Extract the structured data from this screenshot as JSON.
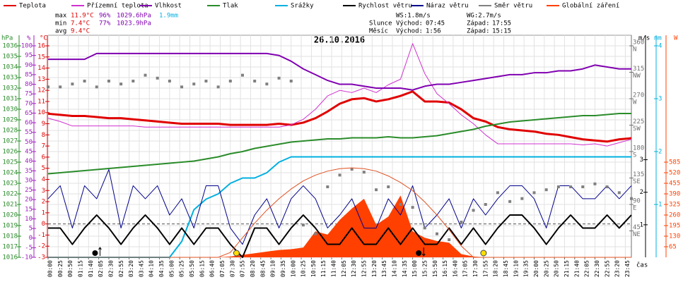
{
  "chart_data": {
    "type": "line",
    "title": "26.10.2016",
    "xlabel": "čas",
    "x": [
      0,
      30,
      60,
      90,
      120,
      150,
      180,
      210,
      240,
      270,
      300,
      330,
      360,
      390,
      420,
      450,
      480,
      510,
      540,
      570,
      600,
      630,
      660,
      690,
      720,
      750,
      780,
      810,
      840,
      870,
      900,
      930,
      960,
      990,
      1020,
      1050,
      1080,
      1110,
      1140,
      1170,
      1200,
      1230,
      1260,
      1290,
      1320,
      1350,
      1380,
      1410,
      1440
    ],
    "xlim": [
      0,
      1440
    ],
    "xticks": [
      {
        "value": 0,
        "label": "00:00"
      },
      {
        "value": 25,
        "label": "00:25"
      },
      {
        "value": 50,
        "label": "00:50"
      },
      {
        "value": 75,
        "label": "01:15"
      },
      {
        "value": 100,
        "label": "01:40"
      },
      {
        "value": 125,
        "label": "02:05"
      },
      {
        "value": 150,
        "label": "02:30"
      },
      {
        "value": 175,
        "label": "02:55"
      },
      {
        "value": 200,
        "label": "03:20"
      },
      {
        "value": 225,
        "label": "03:45"
      },
      {
        "value": 250,
        "label": "04:10"
      },
      {
        "value": 275,
        "label": "04:35"
      },
      {
        "value": 300,
        "label": "05:00"
      },
      {
        "value": 325,
        "label": "05:25"
      },
      {
        "value": 350,
        "label": "05:50"
      },
      {
        "value": 375,
        "label": "06:15"
      },
      {
        "value": 400,
        "label": "06:40"
      },
      {
        "value": 425,
        "label": "07:05"
      },
      {
        "value": 450,
        "label": "07:30"
      },
      {
        "value": 475,
        "label": "07:55"
      },
      {
        "value": 500,
        "label": "08:20"
      },
      {
        "value": 525,
        "label": "08:45"
      },
      {
        "value": 550,
        "label": "09:10"
      },
      {
        "value": 575,
        "label": "09:35"
      },
      {
        "value": 600,
        "label": "10:00"
      },
      {
        "value": 625,
        "label": "10:25"
      },
      {
        "value": 650,
        "label": "10:50"
      },
      {
        "value": 675,
        "label": "11:15"
      },
      {
        "value": 700,
        "label": "11:40"
      },
      {
        "value": 725,
        "label": "12:05"
      },
      {
        "value": 750,
        "label": "12:30"
      },
      {
        "value": 775,
        "label": "12:55"
      },
      {
        "value": 800,
        "label": "13:20"
      },
      {
        "value": 825,
        "label": "13:45"
      },
      {
        "value": 850,
        "label": "14:10"
      },
      {
        "value": 875,
        "label": "14:35"
      },
      {
        "value": 900,
        "label": "15:00"
      },
      {
        "value": 925,
        "label": "15:25"
      },
      {
        "value": 950,
        "label": "15:50"
      },
      {
        "value": 975,
        "label": "16:15"
      },
      {
        "value": 1000,
        "label": "16:40"
      },
      {
        "value": 1025,
        "label": "17:05"
      },
      {
        "value": 1050,
        "label": "17:30"
      },
      {
        "value": 1075,
        "label": "17:55"
      },
      {
        "value": 1100,
        "label": "18:20"
      },
      {
        "value": 1125,
        "label": "18:45"
      },
      {
        "value": 1150,
        "label": "19:10"
      },
      {
        "value": 1175,
        "label": "19:35"
      },
      {
        "value": 1200,
        "label": "20:00"
      },
      {
        "value": 1225,
        "label": "20:25"
      },
      {
        "value": 1250,
        "label": "20:50"
      },
      {
        "value": 1275,
        "label": "21:15"
      },
      {
        "value": 1300,
        "label": "21:40"
      },
      {
        "value": 1325,
        "label": "22:05"
      },
      {
        "value": 1350,
        "label": "22:30"
      },
      {
        "value": 1375,
        "label": "22:55"
      },
      {
        "value": 1400,
        "label": "23:20"
      },
      {
        "value": 1425,
        "label": "23:45"
      }
    ],
    "grid": true,
    "axes": [
      {
        "id": "y",
        "label": "hPa",
        "color": "#2a8c2a",
        "lim": [
          1016,
          1036
        ],
        "ticks": [
          1016,
          1017,
          1018,
          1019,
          1020,
          1021,
          1022,
          1023,
          1024,
          1025,
          1026,
          1027,
          1028,
          1029,
          1030,
          1031,
          1032,
          1033,
          1034,
          1035,
          1036
        ]
      },
      {
        "id": "y2",
        "label": "%",
        "color": "#a020c0",
        "lim": [
          -10,
          100
        ],
        "ticks": [
          -10,
          -5,
          0,
          5,
          10,
          15,
          20,
          25,
          30,
          35,
          40,
          45,
          50,
          55,
          60,
          65,
          70,
          75,
          80,
          85,
          90,
          95,
          100
        ]
      },
      {
        "id": "y3",
        "label": "°C",
        "color": "#e00000",
        "lim": [
          -3,
          16
        ],
        "ticks": [
          -3,
          -2,
          -1,
          0,
          1,
          2,
          3,
          4,
          5,
          6,
          7,
          8,
          9,
          10,
          11,
          12,
          13,
          14,
          15,
          16
        ]
      },
      {
        "id": "y4",
        "color": "#707070",
        "lim": [
          0,
          360
        ],
        "ticks": [
          {
            "value": 45,
            "label": "NE"
          },
          {
            "value": 90,
            "label": "E"
          },
          {
            "value": 135,
            "label": "SE"
          },
          {
            "value": 180,
            "label": "S"
          },
          {
            "value": 225,
            "label": "SW"
          },
          {
            "value": 270,
            "label": "W"
          },
          {
            "value": 315,
            "label": "NW"
          },
          {
            "value": 360,
            "label": "N"
          }
        ]
      },
      {
        "id": "y5",
        "label": "m/s",
        "color": "#000000",
        "lim": [
          0,
          6.5
        ],
        "ticks": [
          1,
          2,
          3
        ]
      },
      {
        "id": "y6",
        "label": "mm",
        "color": "#00b0e0",
        "lim": [
          0,
          4
        ],
        "ticks": [
          1,
          2,
          3,
          4
        ]
      },
      {
        "id": "y7",
        "label": "W",
        "color": "#ff4000",
        "lim": [
          0,
          1300
        ],
        "ticks": [
          65,
          130,
          195,
          260,
          325,
          390,
          455,
          520,
          585
        ]
      }
    ],
    "series": [
      {
        "name": "Teplota",
        "color": "#e00000",
        "axis": "y3",
        "kind": "line",
        "width": 3,
        "values": [
          9.9,
          9.8,
          9.7,
          9.7,
          9.6,
          9.5,
          9.5,
          9.4,
          9.3,
          9.2,
          9.1,
          9.0,
          9.0,
          9.0,
          9.0,
          8.9,
          8.9,
          8.9,
          8.9,
          9.0,
          8.9,
          9.1,
          9.5,
          10.1,
          10.8,
          11.2,
          11.3,
          11.0,
          11.2,
          11.5,
          11.9,
          11.0,
          11.0,
          10.9,
          10.3,
          9.5,
          9.2,
          8.7,
          8.5,
          8.4,
          8.3,
          8.1,
          8.0,
          7.8,
          7.6,
          7.5,
          7.4,
          7.6,
          7.7
        ]
      },
      {
        "name": "Přízemní teplota",
        "color": "#d030d0",
        "axis": "y3",
        "kind": "line",
        "width": 1,
        "values": [
          9.5,
          9.2,
          8.8,
          8.8,
          8.8,
          8.8,
          8.8,
          8.8,
          8.7,
          8.7,
          8.7,
          8.7,
          8.7,
          8.7,
          8.7,
          8.7,
          8.7,
          8.7,
          8.7,
          8.7,
          8.9,
          9.4,
          10.3,
          11.5,
          12.0,
          11.8,
          12.2,
          11.8,
          12.5,
          13.0,
          16.2,
          13.5,
          11.7,
          10.8,
          9.8,
          9.0,
          8.0,
          7.2,
          7.2,
          7.2,
          7.2,
          7.2,
          7.2,
          7.2,
          7.1,
          7.2,
          7.0,
          7.3,
          7.6
        ]
      },
      {
        "name": "Vlhkost",
        "color": "#8000b0",
        "axis": "y2",
        "kind": "line",
        "width": 2,
        "values": [
          93,
          93,
          93,
          93,
          96,
          96,
          96,
          96,
          96,
          96,
          96,
          96,
          96,
          96,
          96,
          96,
          96,
          96,
          96,
          95,
          92,
          88,
          85,
          82,
          80,
          80,
          79,
          78,
          78,
          78,
          77,
          79,
          80,
          80,
          81,
          82,
          83,
          84,
          85,
          85,
          86,
          86,
          87,
          87,
          88,
          90,
          89,
          88,
          88
        ]
      },
      {
        "name": "Tlak",
        "color": "#2a8c2a",
        "axis": "y",
        "kind": "line",
        "width": 2,
        "values": [
          1023.9,
          1024.0,
          1024.1,
          1024.2,
          1024.3,
          1024.4,
          1024.5,
          1024.6,
          1024.7,
          1024.8,
          1024.9,
          1025.0,
          1025.1,
          1025.3,
          1025.5,
          1025.8,
          1026.0,
          1026.3,
          1026.5,
          1026.7,
          1026.9,
          1027.0,
          1027.1,
          1027.2,
          1027.2,
          1027.3,
          1027.3,
          1027.3,
          1027.4,
          1027.3,
          1027.3,
          1027.4,
          1027.5,
          1027.7,
          1027.9,
          1028.1,
          1028.4,
          1028.6,
          1028.8,
          1028.9,
          1029.0,
          1029.1,
          1029.2,
          1029.3,
          1029.4,
          1029.4,
          1029.5,
          1029.6,
          1029.6
        ]
      },
      {
        "name": "Srážky",
        "color": "#00b0e0",
        "axis": "y6",
        "kind": "line",
        "width": 2,
        "values": [
          0,
          0,
          0,
          0,
          0,
          0,
          0,
          0,
          0,
          0,
          0,
          0.3,
          0.9,
          1.1,
          1.2,
          1.4,
          1.5,
          1.5,
          1.6,
          1.8,
          1.9,
          1.9,
          1.9,
          1.9,
          1.9,
          1.9,
          1.9,
          1.9,
          1.9,
          1.9,
          1.9,
          1.9,
          1.9,
          1.9,
          1.9,
          1.9,
          1.9,
          1.9,
          1.9,
          1.9,
          1.9,
          1.9,
          1.9,
          1.9,
          1.9,
          1.9,
          1.9,
          1.9,
          1.9
        ]
      },
      {
        "name": "Rychlost větru",
        "color": "#000000",
        "axis": "y5",
        "kind": "line",
        "width": 2,
        "values": [
          0.9,
          0.9,
          0.4,
          0.9,
          1.3,
          0.9,
          0.4,
          0.9,
          1.3,
          0.9,
          0.4,
          0.9,
          0.4,
          0.9,
          0.9,
          0.4,
          0.0,
          0.9,
          0.9,
          0.4,
          0.9,
          1.3,
          0.9,
          0.4,
          0.4,
          0.9,
          0.4,
          0.4,
          0.9,
          0.4,
          0.9,
          0.4,
          0.4,
          0.9,
          0.4,
          0.9,
          0.4,
          0.9,
          1.3,
          1.3,
          0.9,
          0.4,
          0.9,
          1.3,
          0.9,
          0.9,
          1.3,
          0.9,
          1.3
        ]
      },
      {
        "name": "Náraz větru",
        "color": "#00008b",
        "axis": "y5",
        "kind": "line",
        "width": 1,
        "values": [
          1.8,
          2.2,
          0.9,
          2.2,
          1.8,
          2.7,
          0.9,
          2.2,
          1.8,
          2.2,
          1.3,
          1.8,
          0.9,
          2.2,
          2.2,
          0.9,
          0.4,
          1.3,
          1.8,
          0.9,
          1.8,
          2.2,
          1.8,
          0.9,
          1.3,
          1.8,
          0.9,
          0.9,
          1.8,
          1.3,
          2.2,
          0.9,
          1.3,
          1.8,
          0.9,
          1.8,
          1.3,
          1.8,
          2.2,
          2.2,
          1.8,
          0.9,
          2.2,
          2.2,
          1.8,
          1.8,
          2.2,
          1.8,
          2.2
        ]
      },
      {
        "name": "Směr větru",
        "color": "#808080",
        "axis": "y4",
        "kind": "scatter",
        "values": [
          290,
          290,
          295,
          300,
          290,
          300,
          295,
          300,
          310,
          305,
          300,
          290,
          295,
          300,
          290,
          300,
          310,
          300,
          295,
          305,
          300,
          55,
          40,
          120,
          140,
          150,
          145,
          115,
          120,
          90,
          85,
          50,
          40,
          30,
          60,
          80,
          90,
          110,
          95,
          100,
          110,
          115,
          120,
          120,
          120,
          125,
          120,
          110,
          100
        ]
      },
      {
        "name": "Globální záření",
        "color": "#ff4000",
        "axis": "y7",
        "kind": "area",
        "values": [
          0,
          0,
          0,
          0,
          0,
          0,
          0,
          0,
          0,
          0,
          0,
          0,
          0,
          0,
          0,
          5,
          15,
          25,
          35,
          45,
          50,
          60,
          160,
          140,
          230,
          300,
          360,
          200,
          250,
          380,
          160,
          120,
          100,
          90,
          20,
          5,
          0,
          0,
          0,
          0,
          0,
          0,
          0,
          0,
          0,
          0,
          0,
          0,
          0
        ]
      },
      {
        "color": "#e05020",
        "axis": "y7",
        "kind": "line",
        "width": 1,
        "values": [
          0,
          0,
          0,
          0,
          0,
          0,
          0,
          0,
          0,
          0,
          0,
          0,
          0,
          0,
          0,
          30,
          120,
          210,
          290,
          360,
          420,
          470,
          505,
          530,
          545,
          550,
          545,
          530,
          500,
          460,
          410,
          340,
          260,
          170,
          70,
          0,
          0,
          0,
          0,
          0,
          0,
          0,
          0,
          0,
          0,
          0,
          0,
          0,
          0
        ]
      }
    ]
  },
  "stats": {
    "rows": [
      {
        "label": "max",
        "items": [
          {
            "text": "11.9°C",
            "color": "#e00000"
          },
          {
            "text": "96%",
            "color": "#8000b0"
          },
          {
            "text": "1029.6hPa",
            "color": "#8000b0"
          },
          {
            "text": "1.9mm",
            "color": "#00b0e0"
          }
        ]
      },
      {
        "label": "min",
        "items": [
          {
            "text": "7.4°C",
            "color": "#e00000"
          },
          {
            "text": "77%",
            "color": "#8000b0"
          },
          {
            "text": "1023.9hPa",
            "color": "#8000b0"
          }
        ]
      },
      {
        "label": "avg",
        "items": [
          {
            "text": "9.4°C",
            "color": "#e00000"
          }
        ]
      }
    ],
    "wind": [
      "WS:1.8m/s",
      "WG:2.7m/s"
    ],
    "sun": {
      "label": "Slunce",
      "rise_label": "Východ:",
      "rise": "07:45",
      "set_label": "Západ:",
      "set": "17:55"
    },
    "moon": {
      "label": "Měsíc",
      "rise_label": "Východ:",
      "rise": "1:56",
      "set_label": "Západ:",
      "set": "15:15"
    }
  }
}
